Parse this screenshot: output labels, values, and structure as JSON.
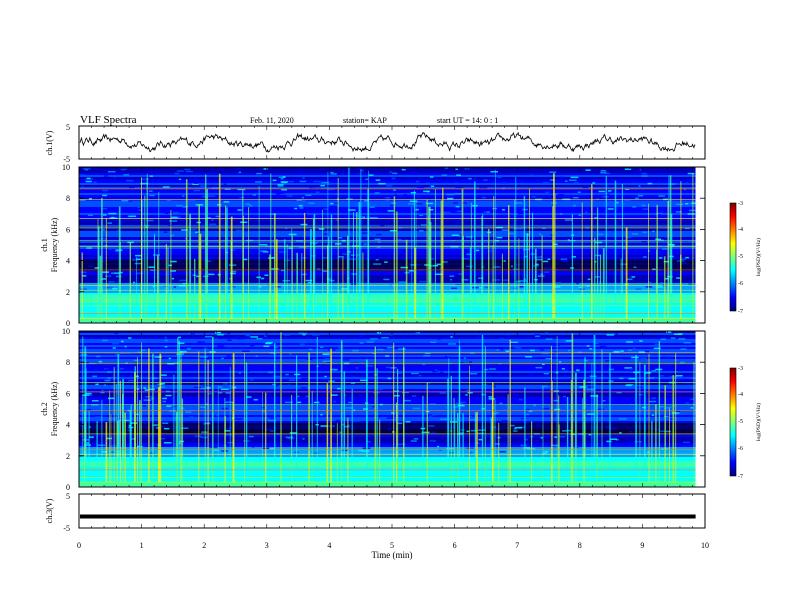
{
  "header": {
    "title": "VLF Spectra",
    "date": "Feb. 11, 2020",
    "station": "station= KAP",
    "start": "start  UT =   14: 0  : 1"
  },
  "colors": {
    "trace": "#000000",
    "background": "#ffffff",
    "colormap": [
      "#00007f",
      "#0000ff",
      "#007fff",
      "#00ffff",
      "#7fff7f",
      "#ffff00",
      "#ff7f00",
      "#ff0000",
      "#7f0000"
    ]
  },
  "chart_data": [
    {
      "type": "line",
      "name": "ch1-waveform",
      "ylabel": "ch.1(V)",
      "ylim": [
        -5,
        5
      ],
      "yticks": [
        "5",
        "-5"
      ],
      "x_range_min": [
        0,
        9.85
      ],
      "description_values": "noisy trace near 0 V, amplitude about ±2 V"
    },
    {
      "type": "heatmap",
      "name": "ch1-spectrogram",
      "ylabel_channel": "ch.1",
      "ylabel": "Frequency  (kHz)",
      "ylim": [
        0,
        10
      ],
      "yticks": [
        "0",
        "2",
        "4",
        "6",
        "8",
        "10"
      ],
      "x_range_min": [
        0,
        9.85
      ],
      "colorbar": {
        "label": "log(PSD)(V²/Hz)",
        "range": [
          -7,
          -3
        ],
        "ticks": [
          "-3",
          "-4",
          "-5",
          "-6",
          "-7"
        ]
      }
    },
    {
      "type": "heatmap",
      "name": "ch2-spectrogram",
      "ylabel_channel": "ch.2",
      "ylabel": "Frequency  (kHz)",
      "ylim": [
        0,
        10
      ],
      "yticks": [
        "0",
        "2",
        "4",
        "6",
        "8",
        "10"
      ],
      "x_range_min": [
        0,
        9.85
      ],
      "colorbar": {
        "label": "log(PSD)(V²/Hz)",
        "range": [
          -7,
          -3
        ],
        "ticks": [
          "-3",
          "-4",
          "-5",
          "-6",
          "-7"
        ]
      }
    },
    {
      "type": "line",
      "name": "ch3-waveform",
      "ylabel": "ch.3(V)",
      "ylim": [
        -5,
        5
      ],
      "yticks": [
        "5",
        "-5"
      ],
      "x_range_min": [
        0,
        9.85
      ],
      "values_constant_v": -1.6
    }
  ],
  "xaxis": {
    "label": "Time  (min)",
    "range": [
      0,
      10
    ],
    "ticks": [
      "0",
      "1",
      "2",
      "3",
      "4",
      "5",
      "6",
      "7",
      "8",
      "9",
      "10"
    ]
  }
}
